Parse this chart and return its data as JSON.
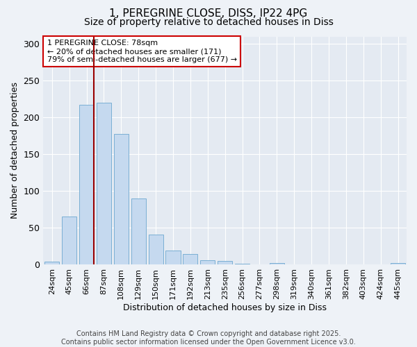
{
  "title1": "1, PEREGRINE CLOSE, DISS, IP22 4PG",
  "title2": "Size of property relative to detached houses in Diss",
  "xlabel": "Distribution of detached houses by size in Diss",
  "ylabel": "Number of detached properties",
  "categories": [
    "24sqm",
    "45sqm",
    "66sqm",
    "87sqm",
    "108sqm",
    "129sqm",
    "150sqm",
    "171sqm",
    "192sqm",
    "213sqm",
    "235sqm",
    "256sqm",
    "277sqm",
    "298sqm",
    "319sqm",
    "340sqm",
    "361sqm",
    "382sqm",
    "403sqm",
    "424sqm",
    "445sqm"
  ],
  "values": [
    4,
    65,
    217,
    220,
    178,
    90,
    41,
    19,
    15,
    6,
    5,
    1,
    0,
    2,
    0,
    0,
    0,
    0,
    0,
    0,
    2
  ],
  "bar_color": "#c5d9ef",
  "bar_edge_color": "#7aafd4",
  "vline_color": "#990000",
  "vline_x": 2.43,
  "annotation_title": "1 PEREGRINE CLOSE: 78sqm",
  "annotation_line1": "← 20% of detached houses are smaller (171)",
  "annotation_line2": "79% of semi-detached houses are larger (677) →",
  "annotation_box_facecolor": "#ffffff",
  "annotation_box_edgecolor": "#cc0000",
  "ylim": [
    0,
    310
  ],
  "yticks": [
    0,
    50,
    100,
    150,
    200,
    250,
    300
  ],
  "footer1": "Contains HM Land Registry data © Crown copyright and database right 2025.",
  "footer2": "Contains public sector information licensed under the Open Government Licence v3.0.",
  "fig_facecolor": "#eef2f7",
  "plot_facecolor": "#e4eaf2",
  "grid_color": "#ffffff",
  "title_fontsize": 11,
  "subtitle_fontsize": 10,
  "ylabel_fontsize": 9,
  "xlabel_fontsize": 9,
  "tick_fontsize": 8,
  "footer_fontsize": 7,
  "ann_fontsize": 8
}
